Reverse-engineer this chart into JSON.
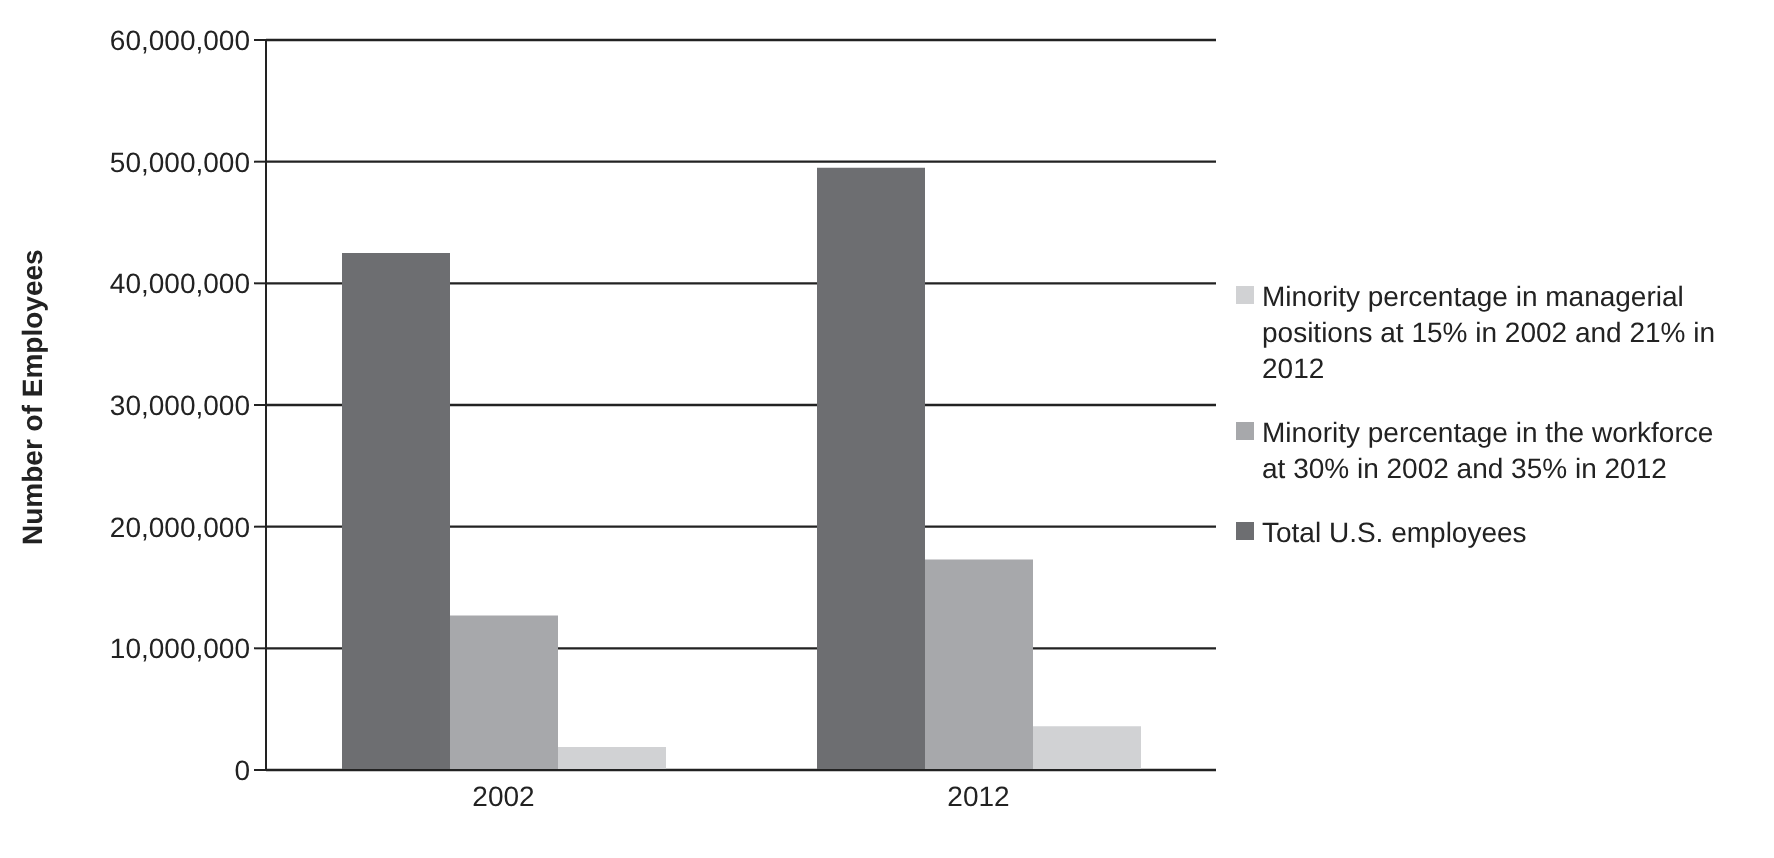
{
  "chart_data": {
    "type": "bar",
    "categories": [
      "2002",
      "2012"
    ],
    "ylabel": "Number of Employees",
    "series": [
      {
        "name": "Total U.S. employees",
        "color": "#6d6e71",
        "values": [
          42500000,
          49500000
        ]
      },
      {
        "name": "Minority percentage in the workforce at 30% in 2002 and 35% in 2012",
        "color": "#a7a8ab",
        "values": [
          12700000,
          17300000
        ]
      },
      {
        "name": "Minority percentage in managerial positions at 15% in 2002 and 21% in 2012",
        "color": "#d1d2d4",
        "values": [
          1900000,
          3600000
        ]
      }
    ],
    "ylim": [
      0,
      60000000
    ],
    "yticks": [
      0,
      {
        "value": 10000000,
        "label": "10,000,000"
      },
      {
        "value": 20000000,
        "label": "20,000,000"
      },
      {
        "value": 30000000,
        "label": "30,000,000"
      },
      {
        "value": 40000000,
        "label": "40,000,000"
      },
      {
        "value": 50000000,
        "label": "50,000,000"
      },
      {
        "value": 60000000,
        "label": "60,000,000"
      }
    ],
    "grid": "y",
    "legend": "right"
  }
}
